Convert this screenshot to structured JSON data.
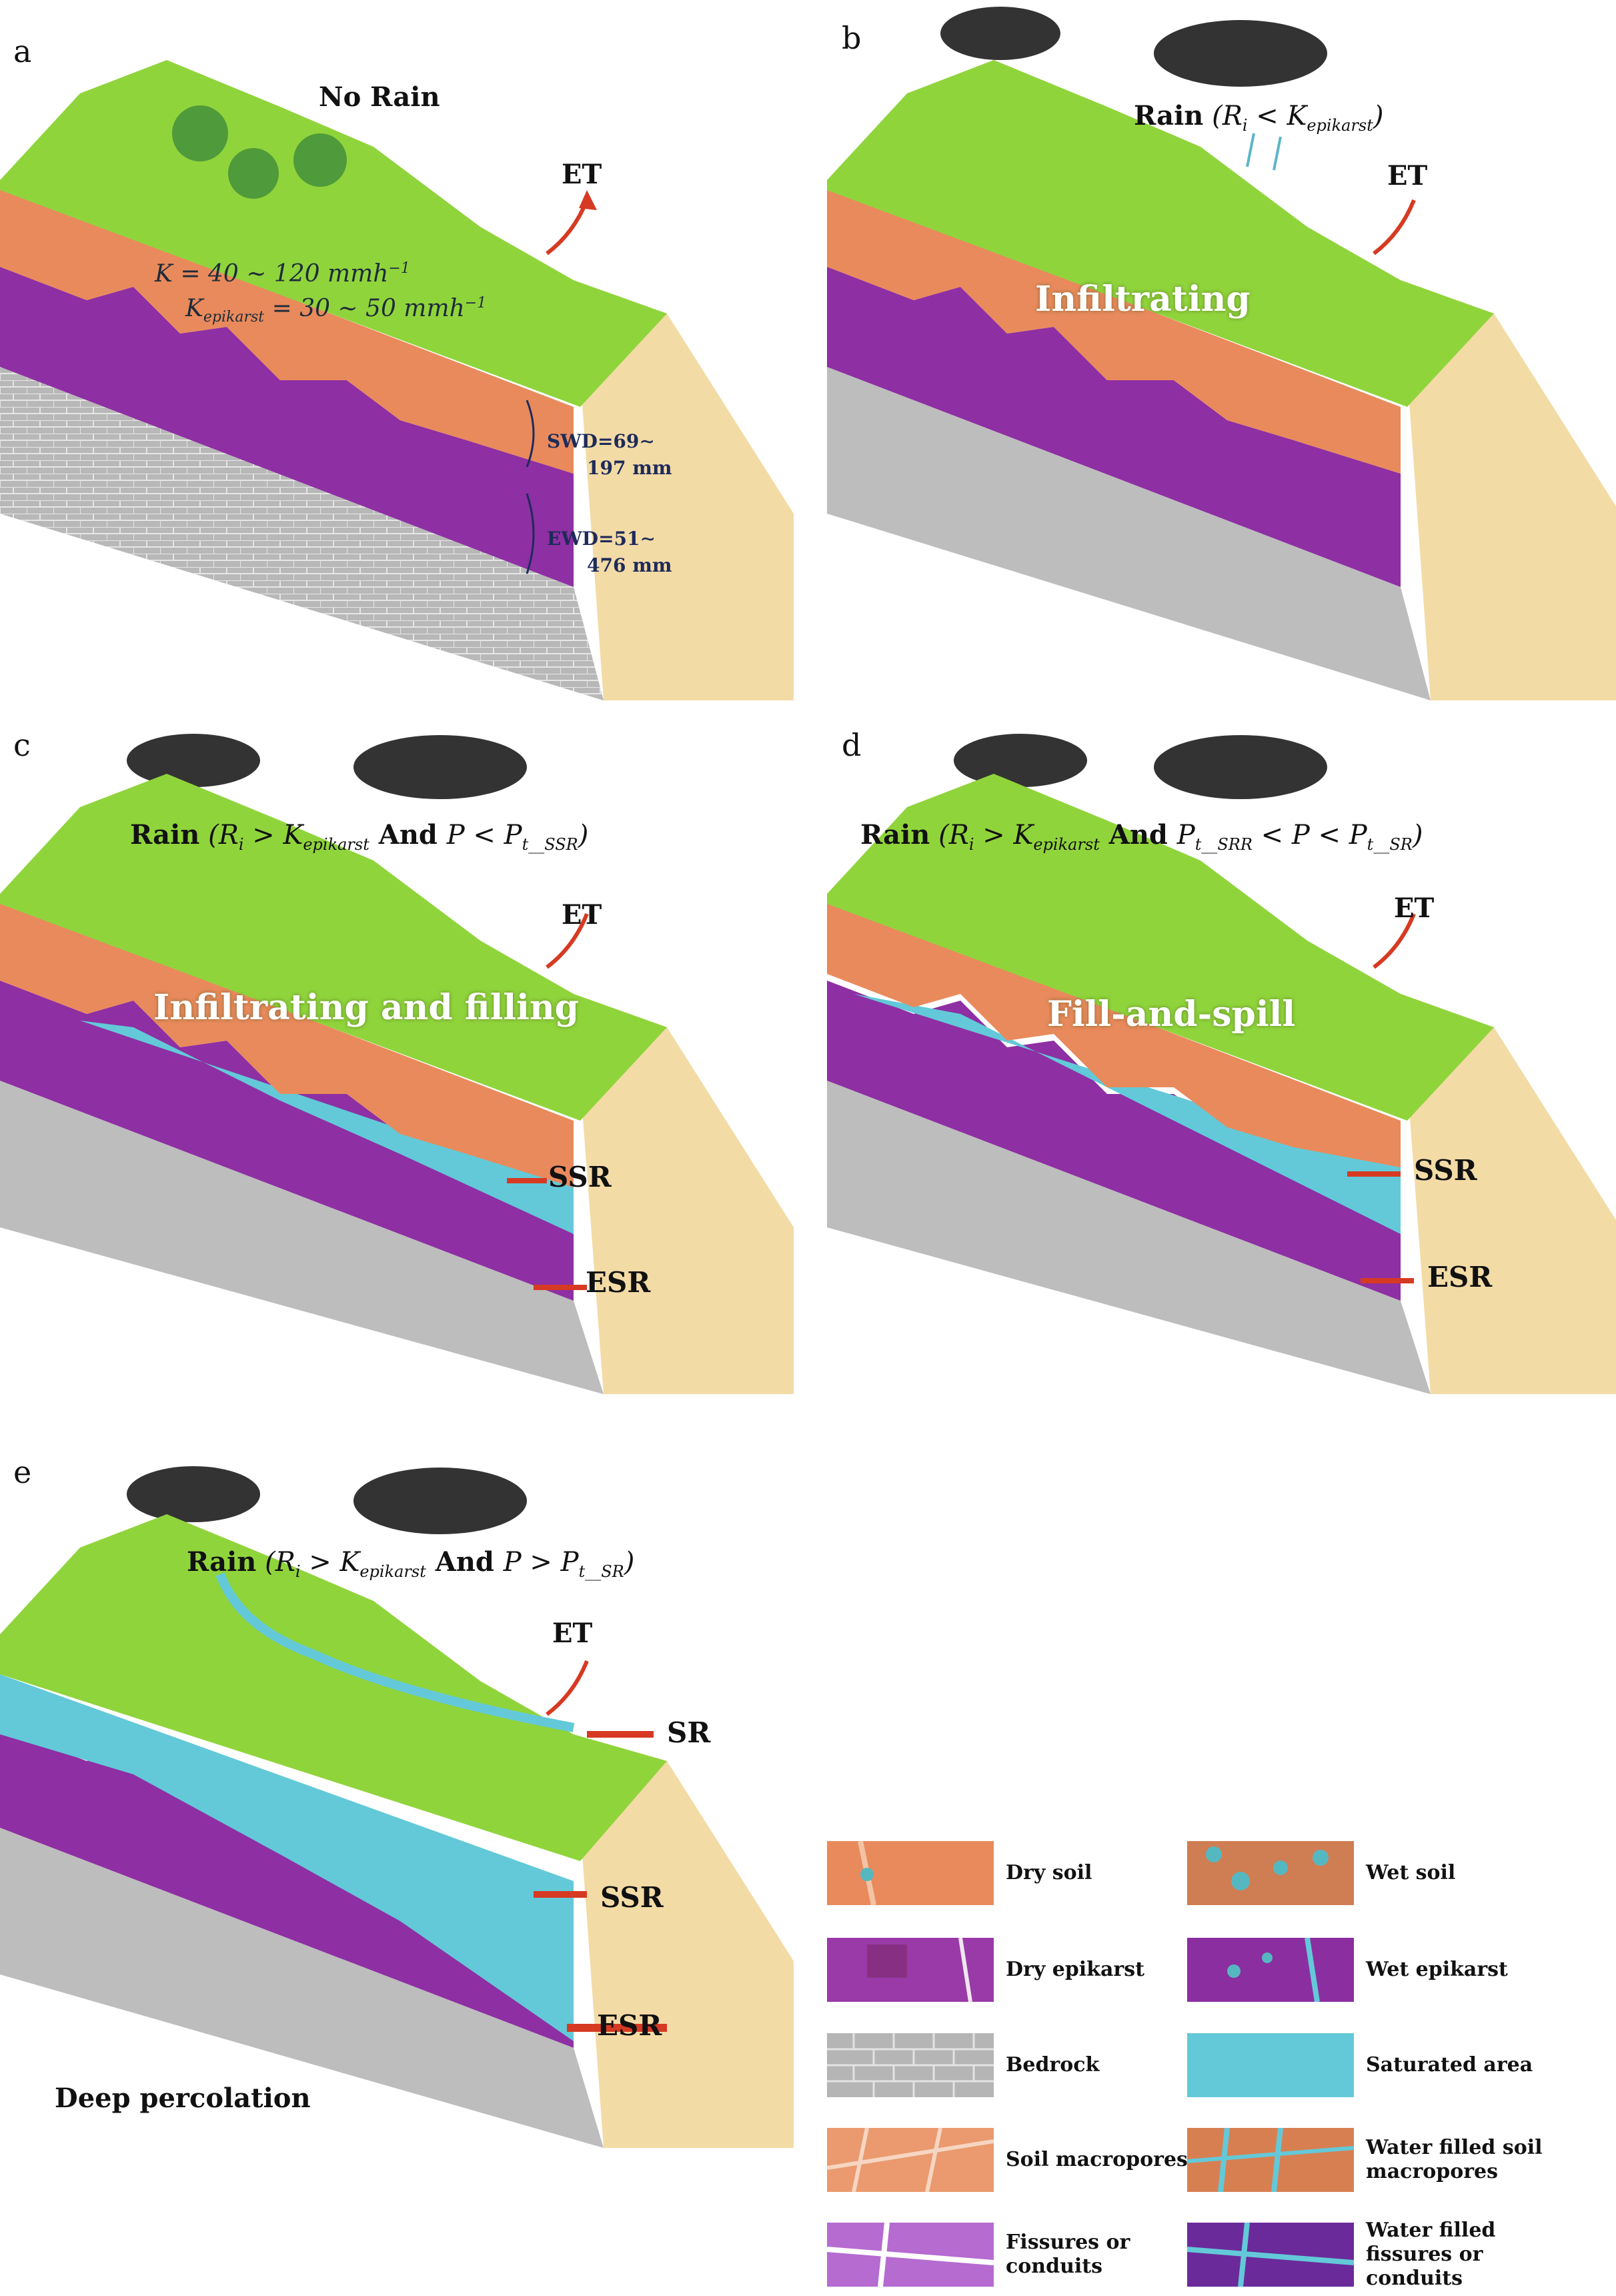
{
  "panels": [
    {
      "letter": "a",
      "caption": "No Rain",
      "et_label": "ET",
      "process_label": "",
      "k_note": "K = 40 ∼ 120 mmh",
      "k_note_exp": "−1",
      "kepi_note": "K",
      "kepi_sub": "epikarst",
      "kepi_value": " = 30 ∼ 50 mmh",
      "kepi_exp": "−1",
      "swd_line1": "SWD=69∼",
      "swd_line2": "197 mm",
      "ewd_line1": "EWD=51∼",
      "ewd_line2": "476 mm"
    },
    {
      "letter": "b",
      "caption_rain": "Rain",
      "caption_open": " (",
      "caption_ri": "R",
      "caption_ri_sub": "i",
      "caption_op": " < K",
      "caption_k_sub": "epikarst",
      "caption_close": ")",
      "et_label": "ET",
      "process_label": "Infiltrating"
    },
    {
      "letter": "c",
      "caption_rain": "Rain",
      "caption_open": " (",
      "caption_ri": "R",
      "caption_ri_sub": "i",
      "caption_op": " > K",
      "caption_k_sub": "epikarst",
      "caption_and": " And ",
      "caption_p": "P < P",
      "caption_p_sub": "t__SSR",
      "caption_close": ")",
      "et_label": "ET",
      "process_label": "Infiltrating and filling",
      "flows": [
        "SSR",
        "ESR"
      ]
    },
    {
      "letter": "d",
      "caption_rain": "Rain",
      "caption_open": " (",
      "caption_ri": "R",
      "caption_ri_sub": "i",
      "caption_op": " > K",
      "caption_k_sub": "epikarst",
      "caption_and": " And ",
      "caption_p1": "P",
      "caption_p1_sub": "t__SRR",
      "caption_mid": " < P < P",
      "caption_p_sub": "t__SR",
      "caption_close": ")",
      "et_label": "ET",
      "process_label": "Fill-and-spill",
      "flows": [
        "SSR",
        "ESR"
      ]
    },
    {
      "letter": "e",
      "caption_rain": "Rain",
      "caption_open": " (",
      "caption_ri": "R",
      "caption_ri_sub": "i",
      "caption_op": " > K",
      "caption_k_sub": "epikarst",
      "caption_and": " And ",
      "caption_p": "P > P",
      "caption_p_sub": "t__SR",
      "caption_close": ")",
      "et_label": "ET",
      "flows": [
        "SR",
        "SSR",
        "ESR"
      ],
      "deep_label": "Deep percolation"
    }
  ],
  "legend": [
    {
      "label": "Dry soil",
      "swatch": "dry-soil"
    },
    {
      "label": "Wet soil",
      "swatch": "wet-soil"
    },
    {
      "label": "Dry epikarst",
      "swatch": "dry-epikarst"
    },
    {
      "label": "Wet epikarst",
      "swatch": "wet-epikarst"
    },
    {
      "label": "Bedrock",
      "swatch": "bedrock"
    },
    {
      "label": "Saturated area",
      "swatch": "saturated"
    },
    {
      "label": "Soil macropores",
      "swatch": "soil-macropores"
    },
    {
      "label": "Water filled soil macropores",
      "swatch": "water-soil-macropores"
    },
    {
      "label": "Fissures or conduits",
      "swatch": "fissures"
    },
    {
      "label": "Water filled fissures or conduits",
      "swatch": "water-fissures"
    }
  ],
  "colors": {
    "grass": "#8fd43a",
    "soil": "#e8875a",
    "epikarst": "#8a2f9e",
    "bedrock": "#a9a9a9",
    "water": "#63c9d8",
    "sand": "#f2d9a0",
    "arrow": "#d63a22"
  }
}
